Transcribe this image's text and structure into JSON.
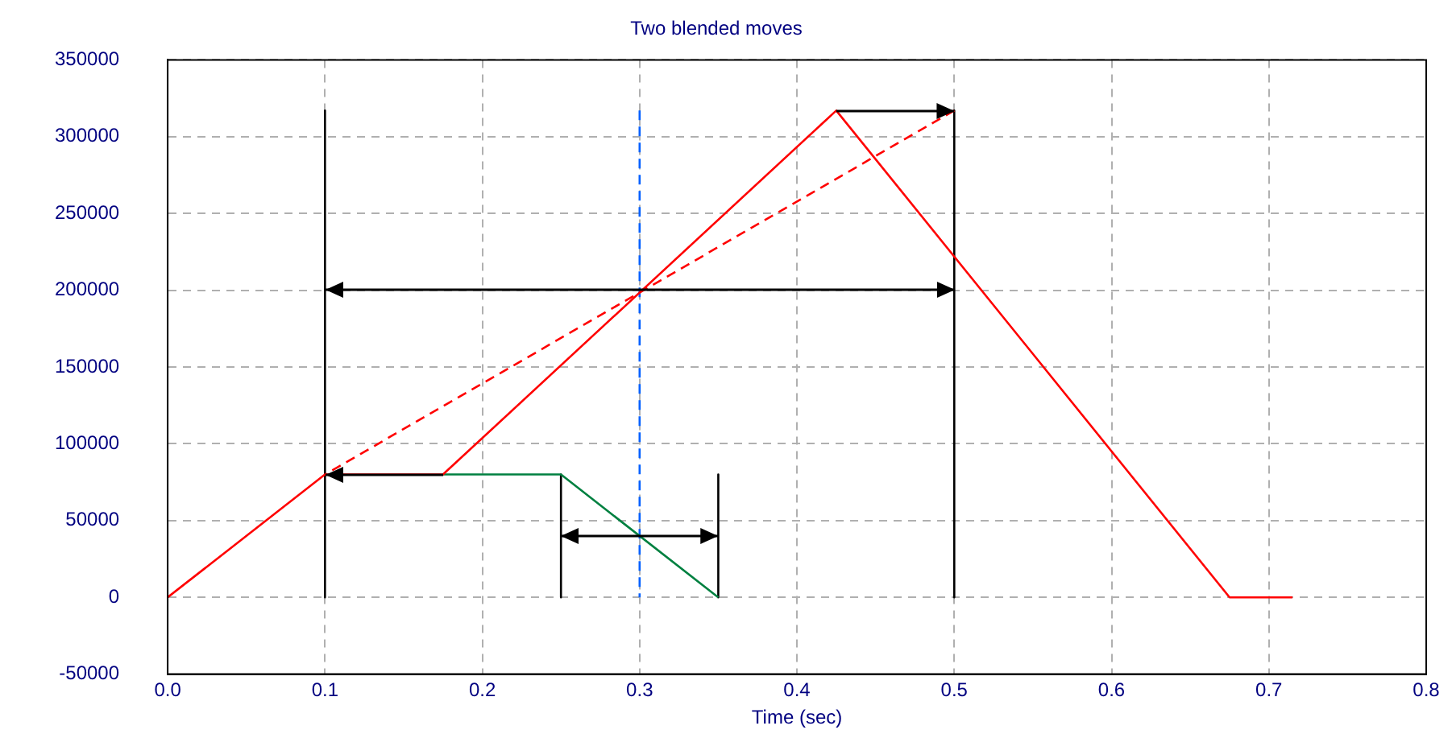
{
  "chart_data": {
    "type": "line",
    "title": "Two blended moves",
    "xlabel": "Time (sec)",
    "xlim": [
      0,
      0.8
    ],
    "xticks": [
      {
        "value": 0,
        "label": "0.0"
      },
      {
        "value": 0.1,
        "label": "0.1"
      },
      {
        "value": 0.2,
        "label": "0.2"
      },
      {
        "value": 0.3,
        "label": "0.3"
      },
      {
        "value": 0.4,
        "label": "0.4"
      },
      {
        "value": 0.5,
        "label": "0.5"
      },
      {
        "value": 0.6,
        "label": "0.6"
      },
      {
        "value": 0.7,
        "label": "0.7"
      },
      {
        "value": 0.8,
        "label": "0.8"
      }
    ],
    "ylim": [
      -50000,
      350000
    ],
    "yticks": [
      -50000,
      0,
      50000,
      100000,
      150000,
      200000,
      250000,
      300000,
      350000
    ],
    "grid": true,
    "legend": false,
    "marker": "none",
    "line_style": "solid",
    "series": [
      {
        "color": "#ff0000",
        "x": [
          0,
          0.1,
          0.175,
          0.425,
          0.675,
          0.715
        ],
        "values": [
          0,
          80000,
          80000,
          317000,
          0,
          0
        ]
      },
      {
        "color": "#ff0000",
        "line_style": "dashed",
        "x": [
          0.5,
          0.1
        ],
        "values": [
          317000,
          80000
        ]
      },
      {
        "color": "#008040",
        "x": [
          0.175,
          0.25,
          0.35
        ],
        "values": [
          80000,
          80000,
          0
        ]
      },
      {
        "color": "#0060ff",
        "line_style": "dashed",
        "x": [
          0.3,
          0.3
        ],
        "values": [
          317000,
          0
        ]
      },
      {
        "color": "#000000",
        "x": [
          0.1,
          0.1
        ],
        "values": [
          317000,
          0
        ]
      },
      {
        "color": "#000000",
        "x": [
          0.5,
          0.5
        ],
        "values": [
          317000,
          0
        ]
      },
      {
        "color": "#000000",
        "x": [
          0.25,
          0.25
        ],
        "values": [
          80000,
          0
        ]
      },
      {
        "color": "#000000",
        "x": [
          0.35,
          0.35
        ],
        "values": [
          80000,
          0
        ]
      }
    ]
  }
}
